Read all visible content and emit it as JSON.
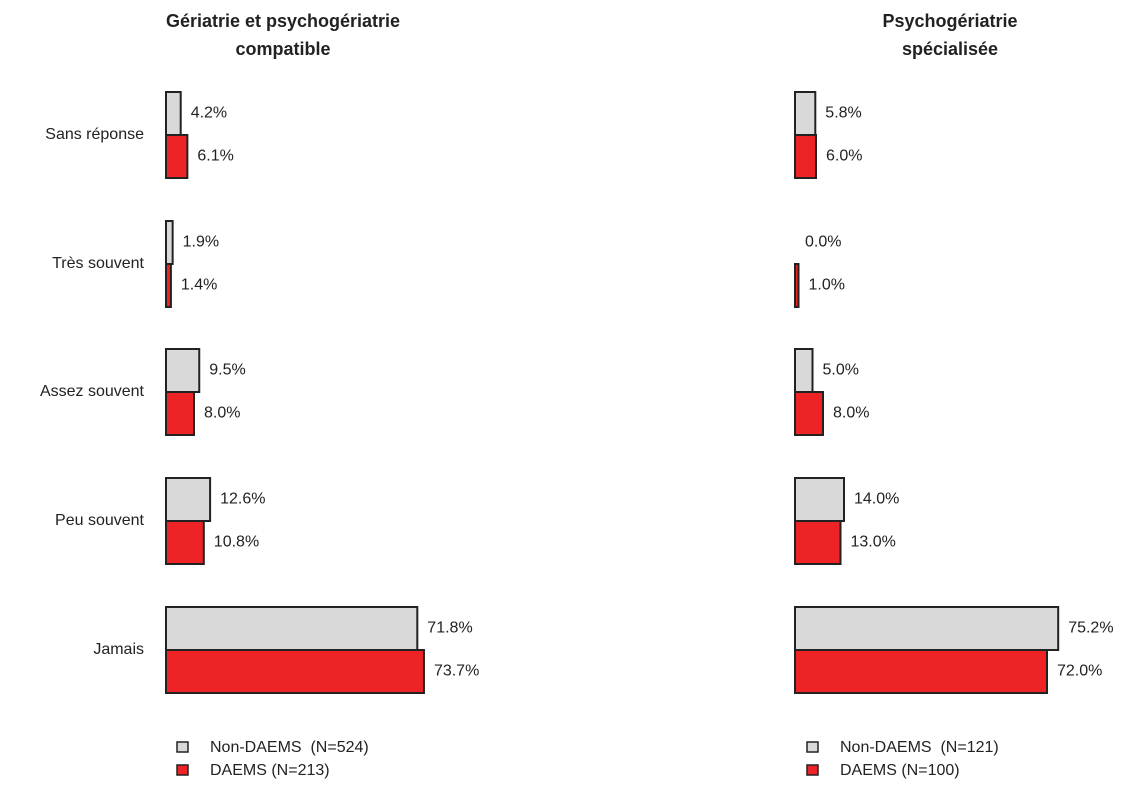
{
  "chart_data": [
    {
      "type": "bar",
      "orientation": "horizontal",
      "title": [
        "Gériatrie et psychogériatrie",
        "compatible"
      ],
      "categories": [
        "Sans réponse",
        "Très souvent",
        "Assez souvent",
        "Peu souvent",
        "Jamais"
      ],
      "series": [
        {
          "name": "Non-DAEMS  (N=524)",
          "color": "#d9d9d9",
          "values": [
            4.2,
            1.9,
            9.5,
            12.6,
            71.8
          ],
          "value_labels": [
            "4.2%",
            "1.9%",
            "9.5%",
            "12.6%",
            "71.8%"
          ]
        },
        {
          "name": "DAEMS (N=213)",
          "color": "#ee2326",
          "values": [
            6.1,
            1.4,
            8.0,
            10.8,
            73.7
          ],
          "value_labels": [
            "6.1%",
            "1.4%",
            "8.0%",
            "10.8%",
            "73.7%"
          ]
        }
      ]
    },
    {
      "type": "bar",
      "orientation": "horizontal",
      "title": [
        "Psychogériatrie",
        "spécialisée"
      ],
      "series": [
        {
          "name": "Non-DAEMS  (N=121)",
          "color": "#d9d9d9",
          "values": [
            5.8,
            0.0,
            5.0,
            14.0,
            75.2
          ],
          "value_labels": [
            "5.8%",
            "0.0%",
            "5.0%",
            "14.0%",
            "75.2%"
          ]
        },
        {
          "name": "DAEMS (N=100)",
          "color": "#ee2326",
          "values": [
            6.0,
            1.0,
            8.0,
            13.0,
            72.0
          ],
          "value_labels": [
            "6.0%",
            "1.0%",
            "8.0%",
            "13.0%",
            "72.0%"
          ]
        }
      ]
    }
  ]
}
